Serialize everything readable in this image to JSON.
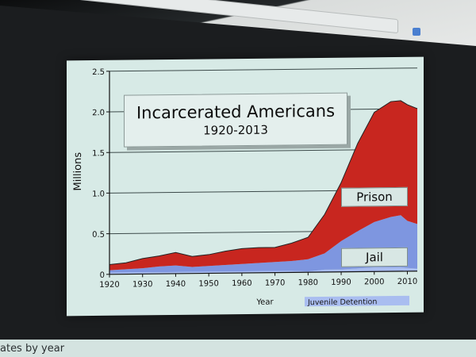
{
  "slide": {
    "title": "Incarcerated Americans",
    "subtitle": "1920-2013"
  },
  "footer": {
    "text": "ates by year"
  },
  "colors": {
    "prison": "#c8261f",
    "jail": "#7e96e0",
    "juvenile": "#a9bdf0",
    "plot_bg": "#d7eae6"
  },
  "chart_data": {
    "type": "area",
    "title": "Incarcerated Americans",
    "subtitle": "1920-2013",
    "xlabel": "Year",
    "ylabel": "Millions",
    "xlim": [
      1920,
      2013
    ],
    "ylim": [
      0,
      2.5
    ],
    "xticks": [
      1920,
      1930,
      1940,
      1950,
      1960,
      1970,
      1980,
      1990,
      2000,
      2010
    ],
    "yticks": [
      "0",
      "0.5",
      "1.0",
      "1.5",
      "2.0",
      "2.5"
    ],
    "grid": "horizontal",
    "stacked": true,
    "x": [
      1920,
      1925,
      1930,
      1935,
      1940,
      1945,
      1950,
      1955,
      1960,
      1965,
      1970,
      1975,
      1980,
      1985,
      1990,
      1995,
      2000,
      2005,
      2008,
      2010,
      2013
    ],
    "series": [
      {
        "name": "Juvenile Detention",
        "values": [
          0.02,
          0.02,
          0.02,
          0.02,
          0.02,
          0.02,
          0.02,
          0.02,
          0.02,
          0.02,
          0.02,
          0.02,
          0.01,
          0.03,
          0.03,
          0.04,
          0.05,
          0.05,
          0.05,
          0.04,
          0.03
        ]
      },
      {
        "name": "Jail",
        "values": [
          0.03,
          0.04,
          0.05,
          0.07,
          0.08,
          0.06,
          0.07,
          0.08,
          0.09,
          0.1,
          0.11,
          0.12,
          0.15,
          0.2,
          0.35,
          0.46,
          0.56,
          0.62,
          0.64,
          0.58,
          0.55
        ]
      },
      {
        "name": "Prison",
        "values": [
          0.07,
          0.08,
          0.12,
          0.13,
          0.16,
          0.13,
          0.14,
          0.17,
          0.19,
          0.19,
          0.18,
          0.22,
          0.27,
          0.48,
          0.72,
          1.08,
          1.35,
          1.42,
          1.41,
          1.43,
          1.42
        ]
      }
    ]
  }
}
